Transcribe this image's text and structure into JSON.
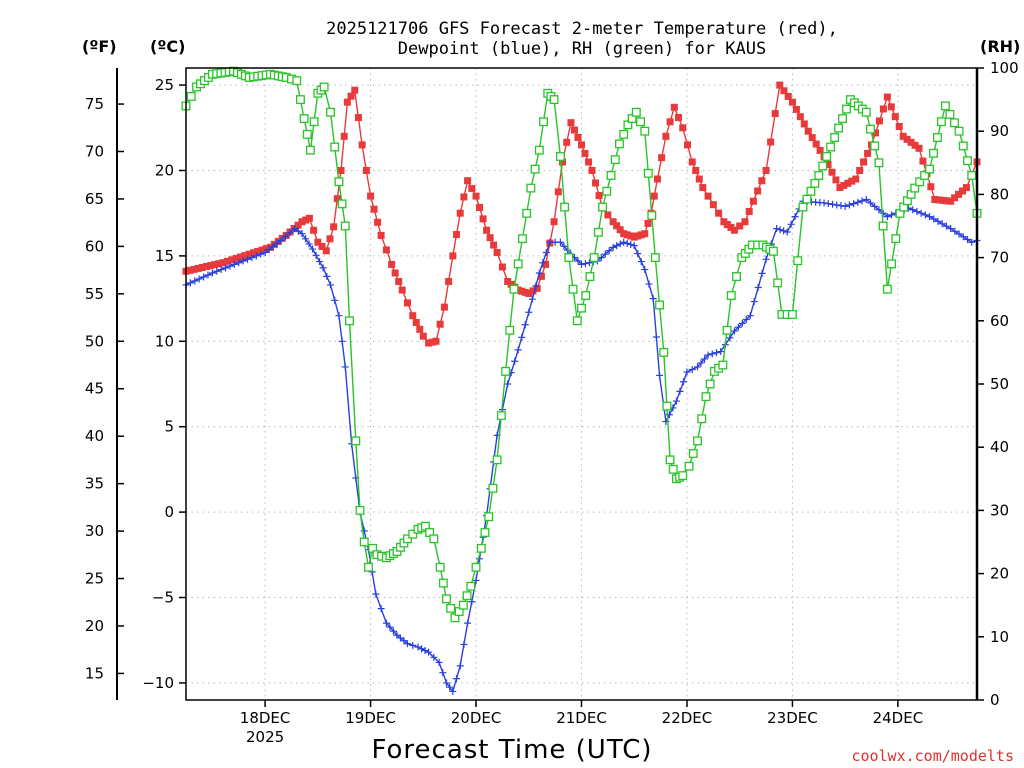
{
  "chart_data": {
    "type": "line",
    "title": "2025121706 GFS Forecast 2-meter Temperature (red),",
    "subtitle": "Dewpoint (blue), RH (green) for KAUS",
    "xlabel": "Forecast Time (UTC)",
    "units": {
      "fahrenheit": "(ºF)",
      "celsius": "(ºC)",
      "rh": "(RH)"
    },
    "credit": "coolwx.com/modelts",
    "x_unit": "days from 18DEC 00 UTC",
    "xlim": [
      -0.75,
      6.75
    ],
    "y_celsius_lim": [
      -11,
      26
    ],
    "y_rh_lim": [
      0,
      100
    ],
    "x_ticks": [
      {
        "x": 0,
        "label": "18DEC",
        "sublabel": "2025"
      },
      {
        "x": 1,
        "label": "19DEC",
        "sublabel": ""
      },
      {
        "x": 2,
        "label": "20DEC",
        "sublabel": ""
      },
      {
        "x": 3,
        "label": "21DEC",
        "sublabel": ""
      },
      {
        "x": 4,
        "label": "22DEC",
        "sublabel": ""
      },
      {
        "x": 5,
        "label": "23DEC",
        "sublabel": ""
      },
      {
        "x": 6,
        "label": "24DEC",
        "sublabel": ""
      }
    ],
    "celsius_ticks": [
      "-10",
      "-5",
      "0",
      "5",
      "10",
      "15",
      "20",
      "25"
    ],
    "fahrenheit_ticks": [
      "15",
      "20",
      "25",
      "30",
      "35",
      "40",
      "45",
      "50",
      "55",
      "60",
      "65",
      "70",
      "75"
    ],
    "rh_ticks": [
      "0",
      "10",
      "20",
      "30",
      "40",
      "50",
      "60",
      "70",
      "80",
      "90",
      "100"
    ],
    "series": [
      {
        "name": "Temperature",
        "units": "C",
        "color": "#e83a3a",
        "marker": "filled-square",
        "points": [
          [
            -0.75,
            14.1
          ],
          [
            -0.4,
            14.6
          ],
          [
            -0.15,
            15.1
          ],
          [
            0.05,
            15.5
          ],
          [
            0.2,
            16.2
          ],
          [
            0.35,
            17.0
          ],
          [
            0.42,
            17.2
          ],
          [
            0.5,
            15.8
          ],
          [
            0.58,
            15.3
          ],
          [
            0.65,
            16.7
          ],
          [
            0.72,
            20.0
          ],
          [
            0.78,
            24.0
          ],
          [
            0.85,
            24.7
          ],
          [
            0.92,
            21.5
          ],
          [
            1.0,
            18.5
          ],
          [
            1.1,
            16.2
          ],
          [
            1.2,
            14.5
          ],
          [
            1.3,
            13.0
          ],
          [
            1.4,
            11.5
          ],
          [
            1.5,
            10.3
          ],
          [
            1.55,
            9.9
          ],
          [
            1.62,
            10.0
          ],
          [
            1.7,
            12.0
          ],
          [
            1.78,
            15.0
          ],
          [
            1.85,
            17.5
          ],
          [
            1.92,
            19.4
          ],
          [
            2.0,
            18.5
          ],
          [
            2.1,
            16.5
          ],
          [
            2.2,
            15.2
          ],
          [
            2.3,
            13.5
          ],
          [
            2.4,
            13.0
          ],
          [
            2.5,
            12.8
          ],
          [
            2.58,
            13.1
          ],
          [
            2.66,
            14.5
          ],
          [
            2.74,
            17.0
          ],
          [
            2.82,
            20.5
          ],
          [
            2.9,
            22.8
          ],
          [
            3.0,
            21.5
          ],
          [
            3.1,
            20.0
          ],
          [
            3.2,
            17.8
          ],
          [
            3.3,
            17.0
          ],
          [
            3.4,
            16.3
          ],
          [
            3.5,
            16.1
          ],
          [
            3.6,
            16.3
          ],
          [
            3.66,
            17.5
          ],
          [
            3.72,
            19.5
          ],
          [
            3.8,
            22.0
          ],
          [
            3.88,
            23.7
          ],
          [
            3.96,
            22.5
          ],
          [
            4.05,
            20.5
          ],
          [
            4.15,
            19.0
          ],
          [
            4.25,
            18.0
          ],
          [
            4.35,
            17.0
          ],
          [
            4.45,
            16.5
          ],
          [
            4.55,
            17.0
          ],
          [
            4.75,
            20.0
          ],
          [
            4.88,
            25.0
          ],
          [
            5.0,
            24.0
          ],
          [
            5.15,
            22.3
          ],
          [
            5.3,
            20.8
          ],
          [
            5.45,
            19.0
          ],
          [
            5.6,
            19.5
          ],
          [
            5.75,
            21.5
          ],
          [
            5.9,
            24.3
          ],
          [
            6.05,
            22.0
          ],
          [
            6.2,
            21.3
          ],
          [
            6.35,
            18.3
          ],
          [
            6.5,
            18.2
          ],
          [
            6.65,
            19.0
          ],
          [
            6.75,
            20.5
          ]
        ]
      },
      {
        "name": "Dewpoint",
        "units": "C",
        "color": "#2a40dd",
        "marker": "plus",
        "points": [
          [
            -0.75,
            13.3
          ],
          [
            -0.5,
            14.0
          ],
          [
            -0.25,
            14.6
          ],
          [
            0.0,
            15.2
          ],
          [
            0.15,
            15.9
          ],
          [
            0.28,
            16.6
          ],
          [
            0.35,
            16.3
          ],
          [
            0.45,
            15.4
          ],
          [
            0.55,
            14.3
          ],
          [
            0.62,
            13.3
          ],
          [
            0.7,
            11.5
          ],
          [
            0.76,
            8.5
          ],
          [
            0.82,
            4.0
          ],
          [
            0.9,
            0.0
          ],
          [
            0.98,
            -2.2
          ],
          [
            1.05,
            -4.8
          ],
          [
            1.15,
            -6.5
          ],
          [
            1.25,
            -7.2
          ],
          [
            1.35,
            -7.7
          ],
          [
            1.45,
            -7.9
          ],
          [
            1.55,
            -8.2
          ],
          [
            1.65,
            -8.8
          ],
          [
            1.72,
            -10.0
          ],
          [
            1.78,
            -10.5
          ],
          [
            1.85,
            -9.0
          ],
          [
            1.92,
            -6.5
          ],
          [
            2.0,
            -4.0
          ],
          [
            2.1,
            -0.2
          ],
          [
            2.2,
            4.5
          ],
          [
            2.3,
            7.5
          ],
          [
            2.4,
            9.5
          ],
          [
            2.5,
            11.7
          ],
          [
            2.6,
            14.0
          ],
          [
            2.7,
            15.8
          ],
          [
            2.8,
            15.8
          ],
          [
            2.9,
            15.1
          ],
          [
            3.0,
            14.5
          ],
          [
            3.15,
            14.7
          ],
          [
            3.3,
            15.5
          ],
          [
            3.4,
            15.8
          ],
          [
            3.5,
            15.6
          ],
          [
            3.6,
            14.2
          ],
          [
            3.68,
            12.5
          ],
          [
            3.74,
            8.0
          ],
          [
            3.8,
            5.3
          ],
          [
            3.9,
            6.5
          ],
          [
            4.0,
            8.2
          ],
          [
            4.1,
            8.5
          ],
          [
            4.2,
            9.2
          ],
          [
            4.32,
            9.4
          ],
          [
            4.45,
            10.6
          ],
          [
            4.6,
            11.5
          ],
          [
            4.75,
            14.8
          ],
          [
            4.85,
            16.6
          ],
          [
            4.95,
            16.4
          ],
          [
            5.1,
            18.2
          ],
          [
            5.3,
            18.1
          ],
          [
            5.5,
            17.9
          ],
          [
            5.7,
            18.3
          ],
          [
            5.9,
            17.3
          ],
          [
            6.1,
            17.8
          ],
          [
            6.3,
            17.3
          ],
          [
            6.5,
            16.6
          ],
          [
            6.7,
            15.8
          ],
          [
            6.75,
            15.9
          ]
        ]
      },
      {
        "name": "RH",
        "units": "%",
        "color": "#28c428",
        "marker": "open-square",
        "points": [
          [
            -0.75,
            94
          ],
          [
            -0.65,
            97
          ],
          [
            -0.5,
            99
          ],
          [
            -0.3,
            99.5
          ],
          [
            -0.15,
            98.5
          ],
          [
            0.05,
            99
          ],
          [
            0.2,
            98.5
          ],
          [
            0.3,
            98
          ],
          [
            0.37,
            92
          ],
          [
            0.43,
            87
          ],
          [
            0.5,
            96
          ],
          [
            0.56,
            97
          ],
          [
            0.62,
            93
          ],
          [
            0.7,
            82
          ],
          [
            0.76,
            75
          ],
          [
            0.8,
            60
          ],
          [
            0.86,
            41
          ],
          [
            0.9,
            30
          ],
          [
            0.94,
            25
          ],
          [
            0.98,
            21
          ],
          [
            1.02,
            24
          ],
          [
            1.06,
            23
          ],
          [
            1.15,
            22.5
          ],
          [
            1.25,
            23.5
          ],
          [
            1.35,
            25.5
          ],
          [
            1.45,
            27
          ],
          [
            1.52,
            27.5
          ],
          [
            1.6,
            25.5
          ],
          [
            1.66,
            21
          ],
          [
            1.72,
            16
          ],
          [
            1.8,
            13
          ],
          [
            1.88,
            15
          ],
          [
            1.95,
            18
          ],
          [
            2.0,
            21
          ],
          [
            2.05,
            24
          ],
          [
            2.12,
            29
          ],
          [
            2.2,
            38
          ],
          [
            2.28,
            52
          ],
          [
            2.36,
            65
          ],
          [
            2.44,
            73
          ],
          [
            2.52,
            81
          ],
          [
            2.6,
            87
          ],
          [
            2.68,
            96
          ],
          [
            2.74,
            95
          ],
          [
            2.8,
            86
          ],
          [
            2.88,
            70
          ],
          [
            2.96,
            60
          ],
          [
            3.04,
            64
          ],
          [
            3.12,
            70
          ],
          [
            3.2,
            78
          ],
          [
            3.28,
            83
          ],
          [
            3.36,
            88
          ],
          [
            3.44,
            91
          ],
          [
            3.52,
            93
          ],
          [
            3.6,
            90
          ],
          [
            3.7,
            70
          ],
          [
            3.78,
            55
          ],
          [
            3.84,
            38
          ],
          [
            3.9,
            35
          ],
          [
            3.96,
            35.5
          ],
          [
            4.02,
            37
          ],
          [
            4.1,
            41
          ],
          [
            4.18,
            48
          ],
          [
            4.26,
            52
          ],
          [
            4.34,
            53
          ],
          [
            4.42,
            64
          ],
          [
            4.52,
            70
          ],
          [
            4.62,
            72
          ],
          [
            4.72,
            72
          ],
          [
            4.82,
            71
          ],
          [
            4.9,
            61
          ],
          [
            5.0,
            61
          ],
          [
            5.1,
            78
          ],
          [
            5.25,
            83
          ],
          [
            5.4,
            89
          ],
          [
            5.55,
            95
          ],
          [
            5.7,
            93
          ],
          [
            5.82,
            85
          ],
          [
            5.9,
            65
          ],
          [
            6.02,
            77
          ],
          [
            6.16,
            81
          ],
          [
            6.3,
            84
          ],
          [
            6.45,
            94
          ],
          [
            6.58,
            90
          ],
          [
            6.7,
            83
          ],
          [
            6.75,
            77
          ]
        ]
      }
    ]
  }
}
